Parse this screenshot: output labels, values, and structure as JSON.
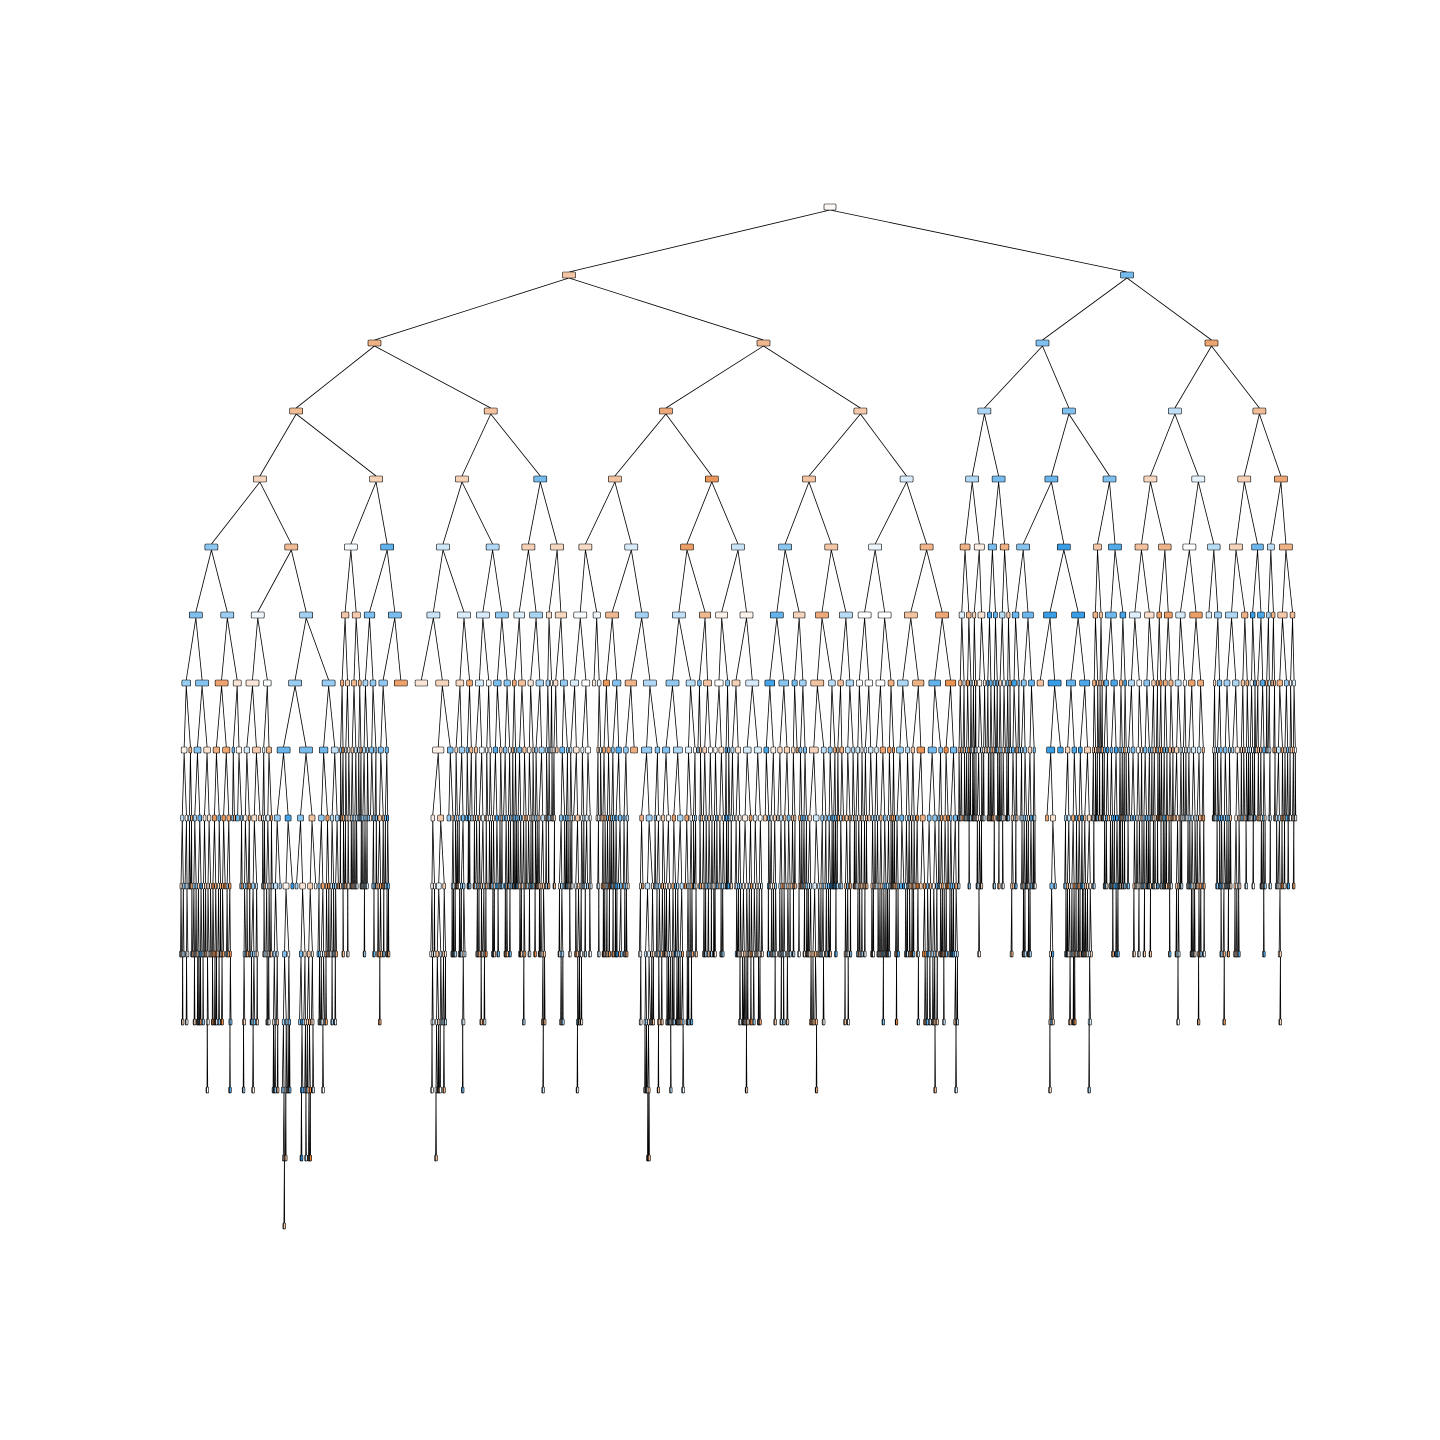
{
  "diagram": {
    "type": "decision-tree",
    "depth_levels": 16,
    "class_colors": {
      "class_0": "#e58139",
      "class_1": "#399de5"
    },
    "node_border_color": "#000000",
    "edge_color": "#000000",
    "background": "#ffffff",
    "node_labels_legible": false
  }
}
